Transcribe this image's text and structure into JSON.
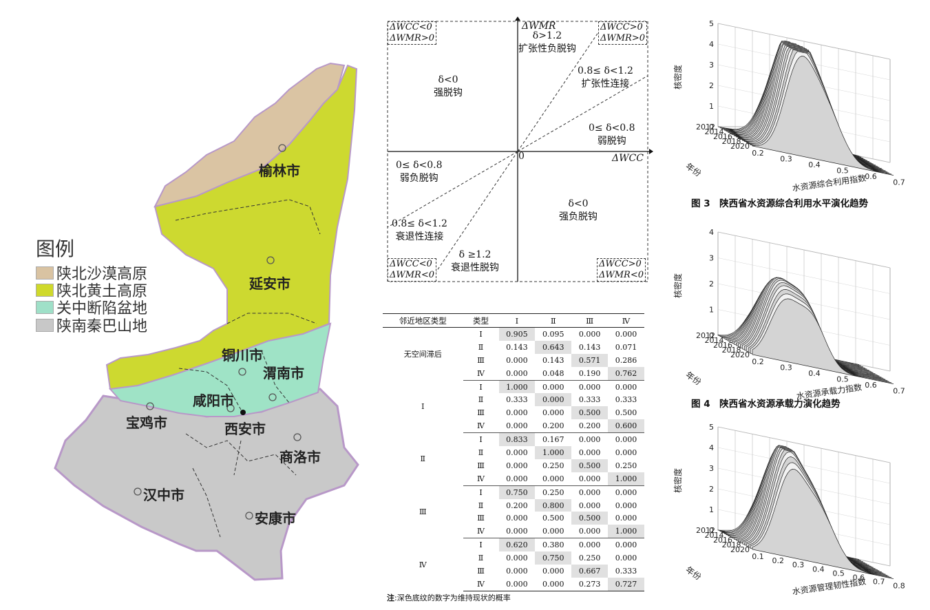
{
  "map": {
    "legend_title": "图例",
    "legend": [
      {
        "label": "陕北沙漠高原",
        "color": "#d9c3a2"
      },
      {
        "label": "陕北黄土高原",
        "color": "#cfd92b"
      },
      {
        "label": "关中断陷盆地",
        "color": "#9fe0c8"
      },
      {
        "label": "陕南秦巴山地",
        "color": "#c8c8c8"
      }
    ],
    "cities": [
      "榆林市",
      "延安市",
      "铜川市",
      "渭南市",
      "咸阳市",
      "宝鸡市",
      "西安市",
      "商洛市",
      "汉中市",
      "安康市"
    ]
  },
  "diagram": {
    "y_axis": "ΔWMR",
    "x_axis": "ΔWCC",
    "origin": "0",
    "corners": {
      "top_left": [
        "ΔWCC<0",
        "ΔWMR>0"
      ],
      "top_right": [
        "ΔWCC>0",
        "ΔWMR>0"
      ],
      "bottom_left": [
        "ΔWCC<0",
        "ΔWMR<0"
      ],
      "bottom_right": [
        "ΔWCC>0",
        "ΔWMR<0"
      ]
    },
    "regions": {
      "strong_decoupling": [
        "δ<0",
        "强脱钩"
      ],
      "expansive_negative": [
        "δ>1.2",
        "扩张性负脱钩"
      ],
      "expansive_coupling": [
        "0.8≤ δ<1.2",
        "扩张性连接"
      ],
      "weak_decoupling": [
        "0≤ δ<0.8",
        "弱脱钩"
      ],
      "weak_negative": [
        "0≤ δ<0.8",
        "弱负脱钩"
      ],
      "recessive_coupling": [
        "0.8≤ δ<1.2",
        "衰退性连接"
      ],
      "recessive_decoupling": [
        "δ ≥1.2",
        "衰退性脱钩"
      ],
      "strong_negative": [
        "δ<0",
        "强负脱钩"
      ]
    }
  },
  "table": {
    "headers": [
      "邻近地区类型",
      "类型",
      "Ⅰ",
      "Ⅱ",
      "Ⅲ",
      "Ⅳ"
    ],
    "groups": [
      {
        "label": "无空间滞后",
        "rows": [
          {
            "type": "Ⅰ",
            "v": [
              "0.905",
              "0.095",
              "0.000",
              "0.000"
            ],
            "hl": 0
          },
          {
            "type": "Ⅱ",
            "v": [
              "0.143",
              "0.643",
              "0.143",
              "0.071"
            ],
            "hl": 1
          },
          {
            "type": "Ⅲ",
            "v": [
              "0.000",
              "0.143",
              "0.571",
              "0.286"
            ],
            "hl": 2
          },
          {
            "type": "Ⅳ",
            "v": [
              "0.000",
              "0.048",
              "0.190",
              "0.762"
            ],
            "hl": 3
          }
        ]
      },
      {
        "label": "Ⅰ",
        "rows": [
          {
            "type": "Ⅰ",
            "v": [
              "1.000",
              "0.000",
              "0.000",
              "0.000"
            ],
            "hl": 0
          },
          {
            "type": "Ⅱ",
            "v": [
              "0.333",
              "0.000",
              "0.333",
              "0.333"
            ],
            "hl": 1
          },
          {
            "type": "Ⅲ",
            "v": [
              "0.000",
              "0.000",
              "0.500",
              "0.500"
            ],
            "hl": 2
          },
          {
            "type": "Ⅳ",
            "v": [
              "0.000",
              "0.200",
              "0.200",
              "0.600"
            ],
            "hl": 3
          }
        ]
      },
      {
        "label": "Ⅱ",
        "rows": [
          {
            "type": "Ⅰ",
            "v": [
              "0.833",
              "0.167",
              "0.000",
              "0.000"
            ],
            "hl": 0
          },
          {
            "type": "Ⅱ",
            "v": [
              "0.000",
              "1.000",
              "0.000",
              "0.000"
            ],
            "hl": 1
          },
          {
            "type": "Ⅲ",
            "v": [
              "0.000",
              "0.250",
              "0.500",
              "0.250"
            ],
            "hl": 2
          },
          {
            "type": "Ⅳ",
            "v": [
              "0.000",
              "0.000",
              "0.000",
              "1.000"
            ],
            "hl": 3
          }
        ]
      },
      {
        "label": "Ⅲ",
        "rows": [
          {
            "type": "Ⅰ",
            "v": [
              "0.750",
              "0.250",
              "0.000",
              "0.000"
            ],
            "hl": 0
          },
          {
            "type": "Ⅱ",
            "v": [
              "0.200",
              "0.800",
              "0.000",
              "0.000"
            ],
            "hl": 1
          },
          {
            "type": "Ⅲ",
            "v": [
              "0.000",
              "0.500",
              "0.500",
              "0.000"
            ],
            "hl": 2
          },
          {
            "type": "Ⅳ",
            "v": [
              "0.000",
              "0.000",
              "0.000",
              "1.000"
            ],
            "hl": 3
          }
        ]
      },
      {
        "label": "Ⅳ",
        "rows": [
          {
            "type": "Ⅰ",
            "v": [
              "0.620",
              "0.380",
              "0.000",
              "0.000"
            ],
            "hl": 0
          },
          {
            "type": "Ⅱ",
            "v": [
              "0.000",
              "0.750",
              "0.250",
              "0.000"
            ],
            "hl": 1
          },
          {
            "type": "Ⅲ",
            "v": [
              "0.000",
              "0.000",
              "0.667",
              "0.333"
            ],
            "hl": 2
          },
          {
            "type": "Ⅳ",
            "v": [
              "0.000",
              "0.000",
              "0.273",
              "0.727"
            ],
            "hl": 3
          }
        ]
      }
    ],
    "note_prefix": "注",
    "note": ":深色底纹的数字为维持现状的概率"
  },
  "figures": [
    {
      "caption": "图 3　陕西省水资源综合利用水平演化趋势",
      "zlabel": "核密度",
      "ylabel": "年份",
      "xlabel": "水资源综合利用指数",
      "zticks": [
        "0",
        "1",
        "2",
        "3",
        "4",
        "5"
      ],
      "yticks": [
        "2012",
        "2014",
        "2016",
        "2018",
        "2020"
      ],
      "xticks": [
        "0.2",
        "0.3",
        "0.4",
        "0.5",
        "0.6",
        "0.7"
      ]
    },
    {
      "caption": "图 4　陕西省水资源承载力演化趋势",
      "zlabel": "核密度",
      "ylabel": "年份",
      "xlabel": "水资源承载力指数",
      "zticks": [
        "0",
        "1",
        "2",
        "3",
        "4"
      ],
      "yticks": [
        "2012",
        "2014",
        "2016",
        "2018",
        "2020"
      ],
      "xticks": [
        "0.2",
        "0.3",
        "0.4",
        "0.5",
        "0.6",
        "0.7"
      ]
    },
    {
      "caption": "",
      "zlabel": "核密度",
      "ylabel": "年份",
      "xlabel": "水资源管理韧性指数",
      "zticks": [
        "0",
        "1",
        "2",
        "3",
        "4",
        "5"
      ],
      "yticks": [
        "2012",
        "2014",
        "2016",
        "2018",
        "2020"
      ],
      "xticks": [
        "0.1",
        "0.2",
        "0.3",
        "0.4",
        "0.5",
        "0.6",
        "0.7",
        "0.8"
      ]
    }
  ]
}
